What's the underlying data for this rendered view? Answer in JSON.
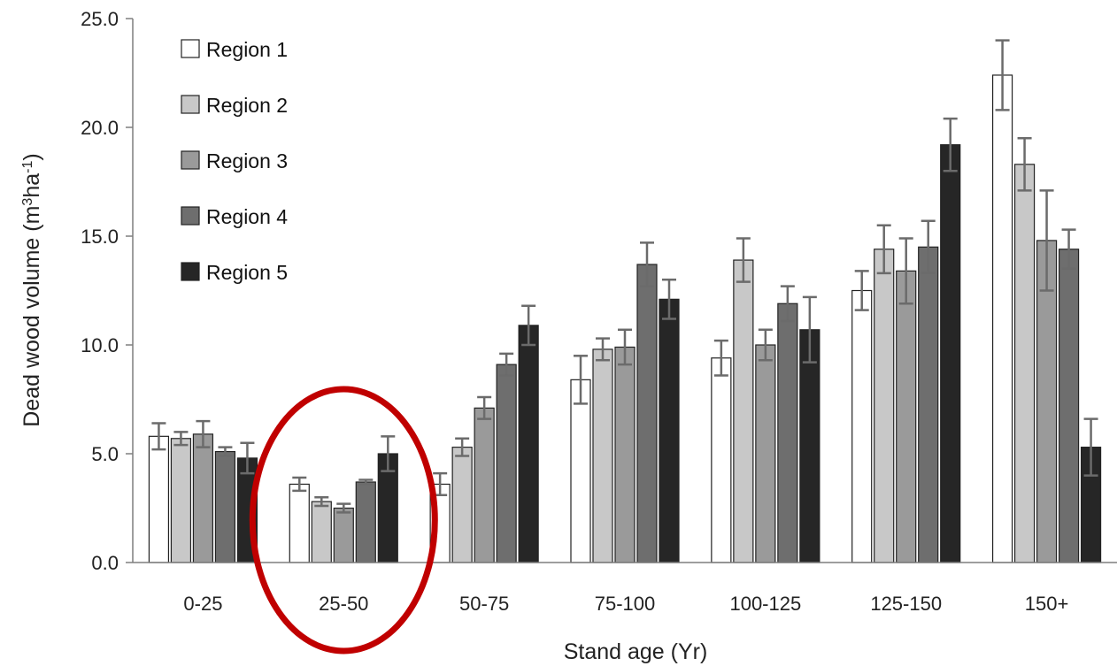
{
  "chart_data": {
    "type": "bar",
    "xlabel": "Stand age (Yr)",
    "ylabel_main": "Dead wood volume (m",
    "ylabel_sup1": "3",
    "ylabel_mid": "ha",
    "ylabel_sup2": "-1",
    "ylabel_end": ")",
    "ylim": [
      0,
      25
    ],
    "yticks": [
      "0.0",
      "5.0",
      "10.0",
      "15.0",
      "20.0",
      "25.0"
    ],
    "categories": [
      "0-25",
      "25-50",
      "50-75",
      "75-100",
      "100-125",
      "125-150",
      "150+"
    ],
    "legend_position": "top-left",
    "grid": false,
    "highlighted_category": "25-50",
    "highlight_color": "#c00000",
    "series": [
      {
        "name": "Region 1",
        "color": "#ffffff",
        "values": [
          5.8,
          3.6,
          3.6,
          8.4,
          9.4,
          12.5,
          22.4
        ],
        "errors": [
          0.6,
          0.3,
          0.5,
          1.1,
          0.8,
          0.9,
          1.6
        ]
      },
      {
        "name": "Region 2",
        "color": "#c8c8c8",
        "values": [
          5.7,
          2.8,
          5.3,
          9.8,
          13.9,
          14.4,
          18.3
        ],
        "errors": [
          0.3,
          0.2,
          0.4,
          0.5,
          1.0,
          1.1,
          1.2
        ]
      },
      {
        "name": "Region 3",
        "color": "#9a9a9a",
        "values": [
          5.9,
          2.5,
          7.1,
          9.9,
          10.0,
          13.4,
          14.8
        ],
        "errors": [
          0.6,
          0.2,
          0.5,
          0.8,
          0.7,
          1.5,
          2.3
        ]
      },
      {
        "name": "Region 4",
        "color": "#6e6e6e",
        "values": [
          5.1,
          3.7,
          9.1,
          13.7,
          11.9,
          14.5,
          14.4
        ],
        "errors": [
          0.2,
          0.1,
          0.5,
          1.0,
          0.8,
          1.2,
          0.9
        ]
      },
      {
        "name": "Region 5",
        "color": "#262626",
        "values": [
          4.8,
          5.0,
          10.9,
          12.1,
          10.7,
          19.2,
          5.3
        ],
        "errors": [
          0.7,
          0.8,
          0.9,
          0.9,
          1.5,
          1.2,
          1.3
        ]
      }
    ]
  }
}
